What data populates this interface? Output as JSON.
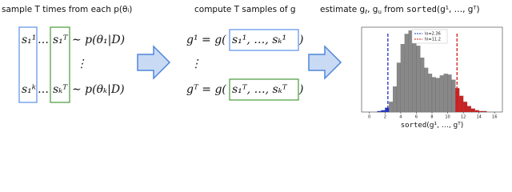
{
  "left": {
    "title": "sample T times from each p(θᵢ)",
    "row1": [
      "s₁¹",
      "…",
      "s₁ᵀ",
      "∼ p(θ₁|D)"
    ],
    "vdots": "⋮",
    "rowk": [
      "s₁ᵏ",
      "…",
      "sₖᵀ",
      "∼ p(θₖ|D)"
    ]
  },
  "middle": {
    "title": "compute T samples of g",
    "row1": [
      "g¹ = g(",
      "s₁¹, …, sₖ¹",
      ")"
    ],
    "vdots": "⋮",
    "rowT": [
      "gᵀ = g(",
      "s₁ᵀ, …, sₖᵀ",
      ")"
    ]
  },
  "right": {
    "title": [
      "estimate g",
      "ℓ",
      ", g",
      "u",
      " from ",
      "sorted",
      "(g¹, …, gᵀ)"
    ],
    "histogram": {
      "bins": [
        0,
        0.5,
        1,
        1.5,
        2,
        2.5,
        3,
        3.5,
        4,
        4.5,
        5,
        5.5,
        6,
        6.5,
        7,
        7.5,
        8,
        8.5,
        9,
        9.5,
        10,
        10.5,
        11,
        11.5,
        12,
        12.5,
        13,
        13.5,
        14,
        14.5,
        15,
        15.5,
        16
      ],
      "counts": [
        0,
        0,
        1,
        2,
        5,
        12,
        30,
        58,
        80,
        92,
        96,
        90,
        78,
        64,
        52,
        45,
        41,
        40,
        43,
        45,
        44,
        38,
        28,
        19,
        12,
        7,
        4,
        2,
        1,
        1,
        0,
        0
      ],
      "xlim": [
        -1,
        17
      ],
      "ylim": [
        0,
        100
      ],
      "xticks": [
        0,
        2,
        4,
        6,
        8,
        10,
        12,
        14,
        16
      ],
      "lo": 2.36,
      "hi": 11.2,
      "legend": [
        "lo=2.36",
        "hi=11.2"
      ],
      "xlabel": [
        "sorted",
        "(g¹, …, gᵀ)"
      ]
    }
  }
}
